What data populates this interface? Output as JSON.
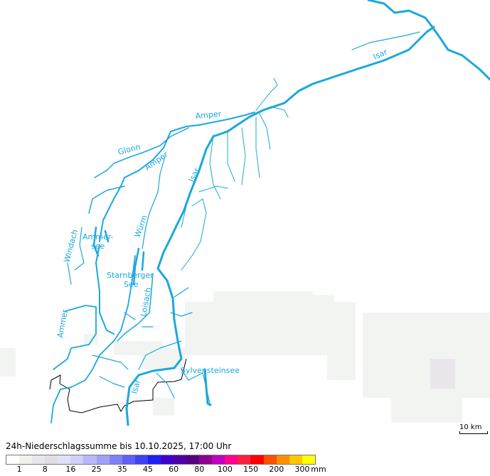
{
  "map": {
    "labels": {
      "isar_north": "Isar",
      "amper_north": "Amper",
      "glonn": "Glonn",
      "amper_mid": "Amper",
      "isar_mid": "Isar",
      "wuerm": "Würm",
      "windach": "Windach",
      "ammersee_1": "Ammer-",
      "ammersee_2": "see",
      "starnberger_1": "Starnberger",
      "starnberger_2": "See",
      "loisach": "Loisach",
      "ammer": "Ammer",
      "sylvensteinsee": "Sylvensteinsee",
      "isar_south": "Isar"
    },
    "river_color": "#1aa8dc",
    "border_color": "#000000",
    "scale": "10 km"
  },
  "legend": {
    "title": "24h-Niederschlagssumme bis 10.10.2025, 17:00 Uhr",
    "unit": "mm",
    "colors": [
      "#ffffff",
      "#f0f2ee",
      "#e8e6ea",
      "#e0dee2",
      "#e0e0fa",
      "#d0d0fa",
      "#b8b8fa",
      "#a0a0f8",
      "#8080f5",
      "#6060f5",
      "#4040f5",
      "#2020f5",
      "#4000d0",
      "#5000a8",
      "#500080",
      "#900090",
      "#c000c0",
      "#ff0090",
      "#ff2040",
      "#ff0000",
      "#ff5000",
      "#ff9000",
      "#ffc800",
      "#ffff00"
    ],
    "labels": [
      "1",
      "8",
      "16",
      "25",
      "35",
      "45",
      "60",
      "80",
      "100",
      "150",
      "200",
      "300"
    ]
  }
}
